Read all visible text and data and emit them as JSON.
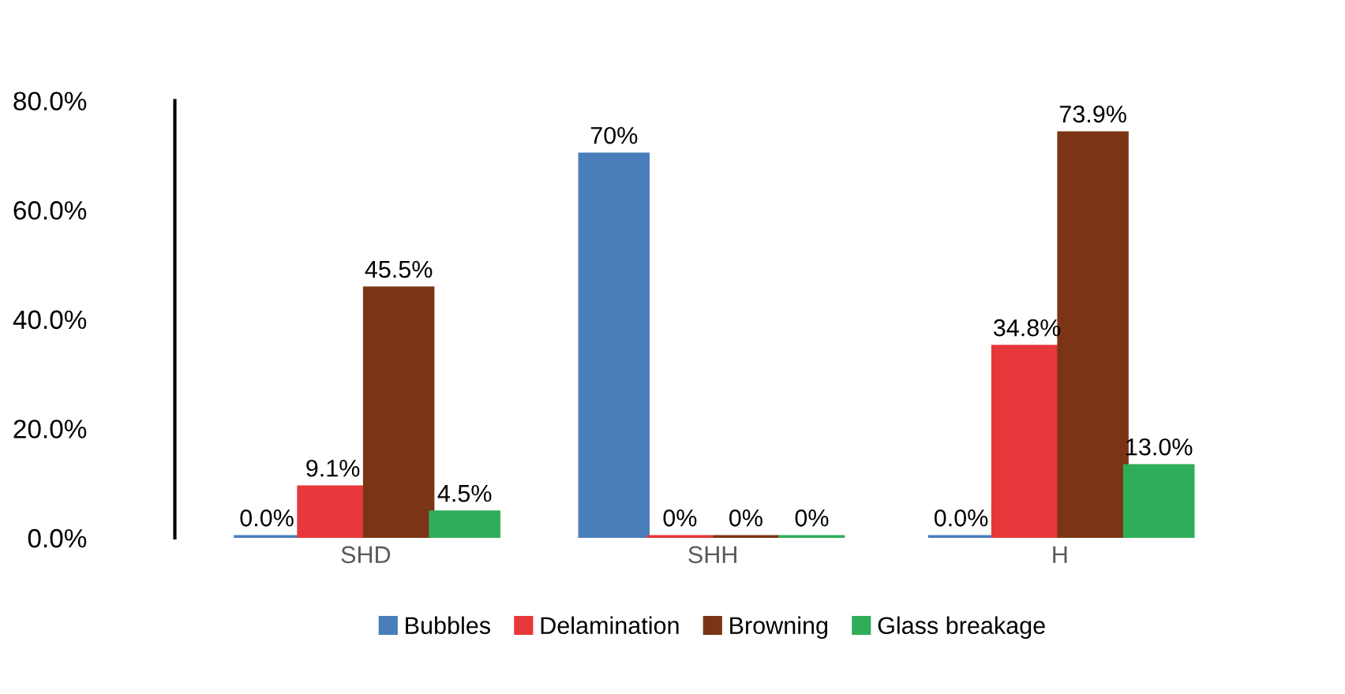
{
  "chart_data": {
    "type": "bar",
    "categories": [
      "SHD",
      "SHH",
      "H"
    ],
    "series": [
      {
        "name": "Bubbles",
        "color": "#4a7ebb",
        "values": [
          0.0,
          70,
          0.0
        ],
        "value_labels": [
          "0.0%",
          "70%",
          "0.0%"
        ]
      },
      {
        "name": "Delamination",
        "color": "#e8373a",
        "values": [
          9.1,
          0,
          34.8
        ],
        "value_labels": [
          "9.1%",
          "0%",
          "34.8%"
        ]
      },
      {
        "name": "Browning",
        "color": "#7b3516",
        "values": [
          45.5,
          0,
          73.9
        ],
        "value_labels": [
          "45.5%",
          "0%",
          "73.9%"
        ]
      },
      {
        "name": "Glass breakage",
        "color": "#2fae5a",
        "values": [
          4.5,
          0,
          13.0
        ],
        "value_labels": [
          "4.5%",
          "0%",
          "13.0%"
        ]
      }
    ],
    "ylim": [
      0,
      80
    ],
    "yticks": [
      {
        "value": 0,
        "label": "0.0%"
      },
      {
        "value": 20,
        "label": "20.0%"
      },
      {
        "value": 40,
        "label": "40.0%"
      },
      {
        "value": 60,
        "label": "60.0%"
      },
      {
        "value": 80,
        "label": "80.0%"
      }
    ],
    "grid": false,
    "legend": "bottom"
  }
}
